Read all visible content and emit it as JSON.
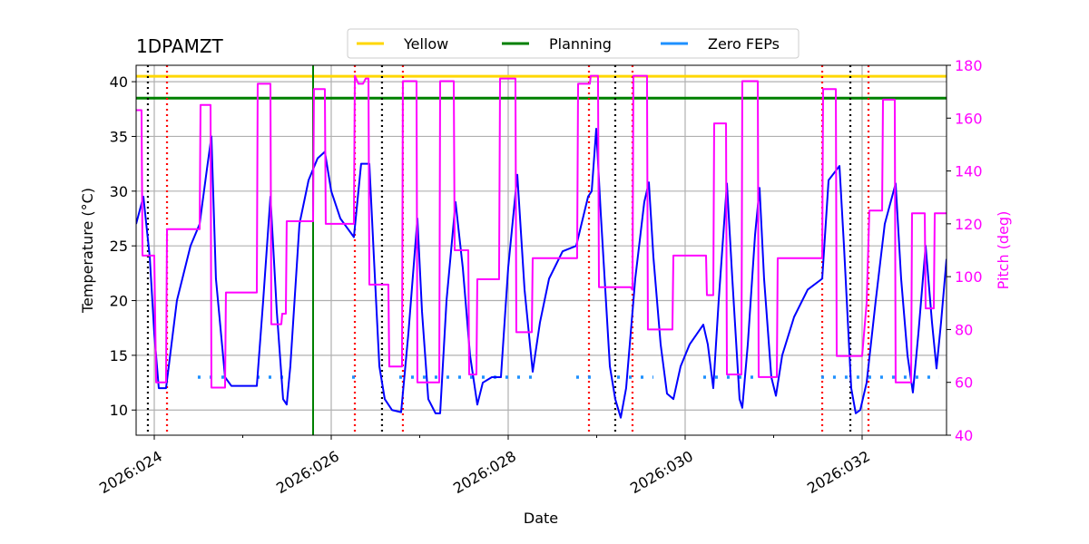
{
  "chart_data": {
    "type": "line",
    "title": "1DPAMZT",
    "xlabel": "Date",
    "ylabel": "Temperature (°C)",
    "y2label": "Pitch (deg)",
    "y2color": "#ff00ff",
    "grid": true,
    "legend": "upper center",
    "xlim": [
      23.795,
      32.954
    ],
    "xticks": [
      {
        "value": 24,
        "label": "2026:024"
      },
      {
        "value": 26,
        "label": "2026:026"
      },
      {
        "value": 28,
        "label": "2026:028"
      },
      {
        "value": 30,
        "label": "2026:030"
      },
      {
        "value": 32,
        "label": "2026:032"
      }
    ],
    "xminorticks": [
      25,
      27,
      29,
      31
    ],
    "ylim": [
      7.7,
      41.5
    ],
    "yticks": [
      10,
      15,
      20,
      25,
      30,
      35,
      40
    ],
    "y2lim": [
      40,
      180
    ],
    "y2ticks": [
      40,
      60,
      80,
      100,
      120,
      140,
      160,
      180
    ],
    "series": [
      {
        "color": "#0000ff",
        "x": [
          23.795,
          23.877,
          23.949,
          24.0,
          24.051,
          24.133,
          24.164,
          24.256,
          24.41,
          24.513,
          24.595,
          24.646,
          24.697,
          24.8,
          24.872,
          25.159,
          25.231,
          25.313,
          25.385,
          25.456,
          25.497,
          25.538,
          25.641,
          25.744,
          25.846,
          25.928,
          26.0,
          26.103,
          26.256,
          26.338,
          26.431,
          26.482,
          26.544,
          26.605,
          26.646,
          26.687,
          26.79,
          26.872,
          26.974,
          27.026,
          27.097,
          27.179,
          27.231,
          27.303,
          27.405,
          27.487,
          27.569,
          27.651,
          27.713,
          27.815,
          27.918,
          28.0,
          28.103,
          28.185,
          28.277,
          28.359,
          28.462,
          28.615,
          28.769,
          28.903,
          28.944,
          28.995,
          29.046,
          29.149,
          29.21,
          29.272,
          29.333,
          29.436,
          29.538,
          29.59,
          29.641,
          29.723,
          29.795,
          29.867,
          29.949,
          30.051,
          30.205,
          30.256,
          30.318,
          30.379,
          30.472,
          30.533,
          30.615,
          30.646,
          30.708,
          30.79,
          30.841,
          30.892,
          30.974,
          31.026,
          31.097,
          31.231,
          31.385,
          31.549,
          31.621,
          31.744,
          31.795,
          31.877,
          31.928,
          31.979,
          32.051,
          32.154,
          32.256,
          32.379,
          32.441,
          32.513,
          32.574,
          32.636,
          32.718,
          32.79,
          32.841,
          32.892,
          32.954
        ],
        "values": [
          27,
          29.5,
          24,
          17,
          12,
          12,
          14,
          20,
          25,
          27,
          32,
          35,
          22,
          13,
          12.2,
          12.2,
          20,
          29.5,
          19,
          11,
          10.5,
          14,
          27,
          31,
          33,
          33.6,
          30,
          27.5,
          25.8,
          32.5,
          32.5,
          24,
          14,
          11,
          10.5,
          10,
          9.8,
          17,
          27.5,
          19,
          11,
          9.7,
          9.7,
          20,
          29,
          23,
          15,
          10.5,
          12.5,
          13,
          13,
          23,
          31.5,
          21,
          13.5,
          18,
          22,
          24.5,
          25,
          29.5,
          30,
          35.7,
          28,
          14,
          11,
          9.3,
          12,
          22,
          29,
          30.8,
          24,
          16,
          11.5,
          11,
          14,
          16,
          17.8,
          16,
          12,
          20,
          30.7,
          22,
          11,
          10.2,
          16,
          26,
          30.3,
          22,
          13,
          11.3,
          15,
          18.5,
          21,
          22,
          31,
          32.3,
          25,
          12,
          9.7,
          10,
          12.5,
          20,
          27,
          30.7,
          22,
          15,
          11.6,
          17,
          25,
          18,
          13.8,
          18,
          23.8
        ]
      },
      {
        "color": "#ff00ff",
        "axis": "y2",
        "x": [
          23.795,
          23.856,
          23.867,
          24.0,
          24.021,
          24.133,
          24.144,
          24.513,
          24.523,
          24.636,
          24.646,
          24.8,
          24.81,
          25.159,
          25.169,
          25.313,
          25.323,
          25.436,
          25.446,
          25.487,
          25.497,
          25.795,
          25.805,
          25.928,
          25.938,
          26.256,
          26.267,
          26.308,
          26.359,
          26.39,
          26.421,
          26.431,
          26.646,
          26.656,
          26.8,
          26.81,
          26.964,
          26.974,
          27.221,
          27.231,
          27.385,
          27.395,
          27.549,
          27.559,
          27.641,
          27.651,
          27.897,
          27.908,
          28.082,
          28.092,
          28.267,
          28.277,
          28.779,
          28.79,
          28.923,
          28.933,
          29.015,
          29.026,
          29.385,
          29.405,
          29.415,
          29.569,
          29.579,
          29.856,
          29.867,
          30.236,
          30.246,
          30.318,
          30.328,
          30.462,
          30.472,
          30.636,
          30.646,
          30.821,
          30.831,
          31.036,
          31.046,
          31.549,
          31.559,
          31.703,
          31.713,
          32.0,
          32.051,
          32.082,
          32.226,
          32.236,
          32.369,
          32.379,
          32.554,
          32.564,
          32.708,
          32.718,
          32.81,
          32.821,
          32.954
        ],
        "values": [
          163,
          163,
          108,
          108,
          60,
          60,
          118,
          118,
          165,
          165,
          58,
          58,
          94,
          94,
          173,
          173,
          82,
          82,
          86,
          86,
          121,
          121,
          171,
          171,
          120,
          120,
          176,
          173,
          173,
          175,
          175,
          97,
          97,
          66,
          66,
          174,
          174,
          60,
          60,
          174,
          174,
          110,
          110,
          63,
          63,
          99,
          99,
          175,
          175,
          79,
          79,
          107,
          107,
          173,
          173,
          176,
          176,
          96,
          96,
          95,
          176,
          176,
          80,
          80,
          108,
          108,
          93,
          93,
          158,
          158,
          63,
          63,
          174,
          174,
          62,
          62,
          107,
          107,
          171,
          171,
          70,
          70,
          90,
          125,
          125,
          167,
          167,
          60,
          60,
          124,
          124,
          88,
          88,
          124,
          124
        ]
      }
    ],
    "hlines": [
      {
        "name": "Yellow",
        "value": 40.5,
        "color": "#ffd700"
      },
      {
        "name": "Planning",
        "value": 38.5,
        "color": "#008000"
      }
    ],
    "vlines": [
      {
        "x": 25.795,
        "color": "#008000",
        "style": "solid"
      },
      {
        "x": 23.928,
        "color": "#000000",
        "style": "dotted"
      },
      {
        "x": 26.574,
        "color": "#000000",
        "style": "dotted"
      },
      {
        "x": 29.21,
        "color": "#000000",
        "style": "dotted"
      },
      {
        "x": 31.867,
        "color": "#000000",
        "style": "dotted"
      },
      {
        "x": 24.144,
        "color": "#ff0000",
        "style": "dotted"
      },
      {
        "x": 26.267,
        "color": "#ff0000",
        "style": "dotted"
      },
      {
        "x": 26.81,
        "color": "#ff0000",
        "style": "dotted"
      },
      {
        "x": 28.913,
        "color": "#ff0000",
        "style": "dotted"
      },
      {
        "x": 29.405,
        "color": "#ff0000",
        "style": "dotted"
      },
      {
        "x": 31.549,
        "color": "#ff0000",
        "style": "dotted"
      },
      {
        "x": 32.072,
        "color": "#ff0000",
        "style": "dotted"
      }
    ],
    "zero_feps": {
      "name": "Zero FEPs",
      "color": "#1e90ff",
      "value": 13,
      "segments": [
        [
          24.492,
          24.8
        ],
        [
          25.159,
          25.518
        ],
        [
          26.236,
          26.287
        ],
        [
          26.769,
          28.308
        ],
        [
          28.769,
          28.974
        ],
        [
          29.231,
          29.641
        ],
        [
          30.205,
          30.769
        ],
        [
          31.538,
          32.872
        ]
      ]
    }
  }
}
